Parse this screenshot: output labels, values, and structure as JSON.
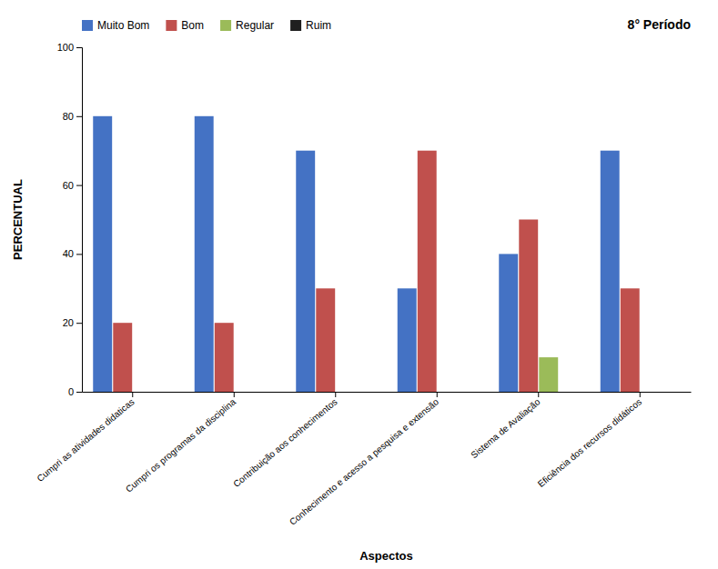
{
  "chart_data": {
    "type": "bar",
    "title": "8° Período",
    "categories": [
      "Cumpri as atividades didaticas",
      "Cumpri os programas da disciplina",
      "Contribuição aos conhecimentos",
      "Conhecimento e acesso a pesquisa e extensão",
      "Sistema de Avaliação",
      "Eficiência dos recursos didáticos"
    ],
    "series": [
      {
        "name": "Muito Bom",
        "color": "#4472C4",
        "values": [
          80,
          80,
          70,
          30,
          40,
          70
        ]
      },
      {
        "name": "Bom",
        "color": "#C0504D",
        "values": [
          20,
          20,
          30,
          70,
          50,
          30
        ]
      },
      {
        "name": "Regular",
        "color": "#9BBB59",
        "values": [
          0,
          0,
          0,
          0,
          10,
          0
        ]
      },
      {
        "name": "Ruim",
        "color": "#1F1F1F",
        "values": [
          0,
          0,
          0,
          0,
          0,
          0
        ]
      }
    ],
    "xlabel": "Aspectos",
    "ylabel": "PERCENTUAL",
    "ylim": [
      0,
      100
    ],
    "yticks": [
      0,
      20,
      40,
      60,
      80,
      100
    ],
    "grid": false,
    "legend": "upper left"
  }
}
